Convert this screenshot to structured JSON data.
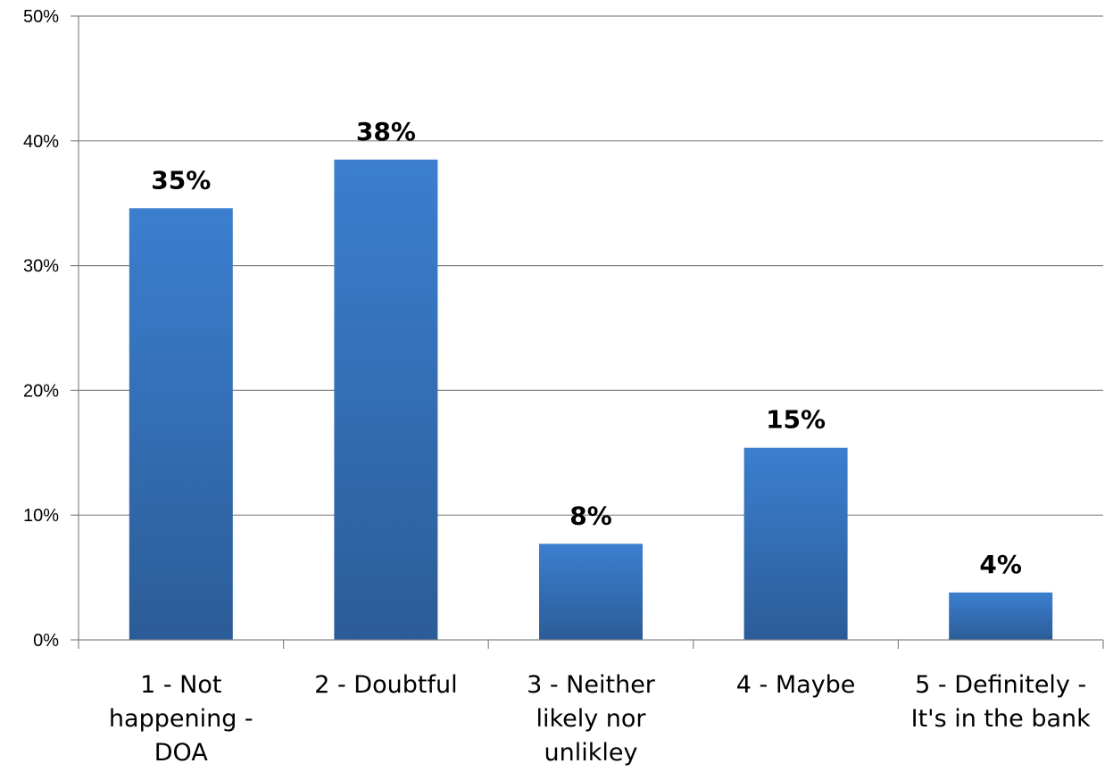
{
  "chart_data": {
    "type": "bar",
    "categories": [
      "1 - Not happening - DOA",
      "2 - Doubtful",
      "3 - Neither likely nor unlikley",
      "4 - Maybe",
      "5 - Definitely - It's in the bank"
    ],
    "category_lines": [
      [
        "1 - Not",
        "happening -",
        "DOA"
      ],
      [
        "2 - Doubtful"
      ],
      [
        "3 - Neither",
        "likely nor",
        "unlikley"
      ],
      [
        "4 - Maybe"
      ],
      [
        "5 - Definitely -",
        "It's in the bank"
      ]
    ],
    "values": [
      34.6,
      38.5,
      7.7,
      15.4,
      3.8
    ],
    "data_labels": [
      "35%",
      "38%",
      "8%",
      "15%",
      "4%"
    ],
    "ylim": [
      0,
      50
    ],
    "yticks": [
      0,
      10,
      20,
      30,
      40,
      50
    ],
    "ytick_labels": [
      "0%",
      "10%",
      "20%",
      "30%",
      "40%",
      "50%"
    ],
    "title": "",
    "xlabel": "",
    "ylabel": "",
    "grid": true,
    "legend": "none",
    "bar_color_top": "#3b7fcf",
    "bar_color_bottom": "#2c5c98"
  }
}
